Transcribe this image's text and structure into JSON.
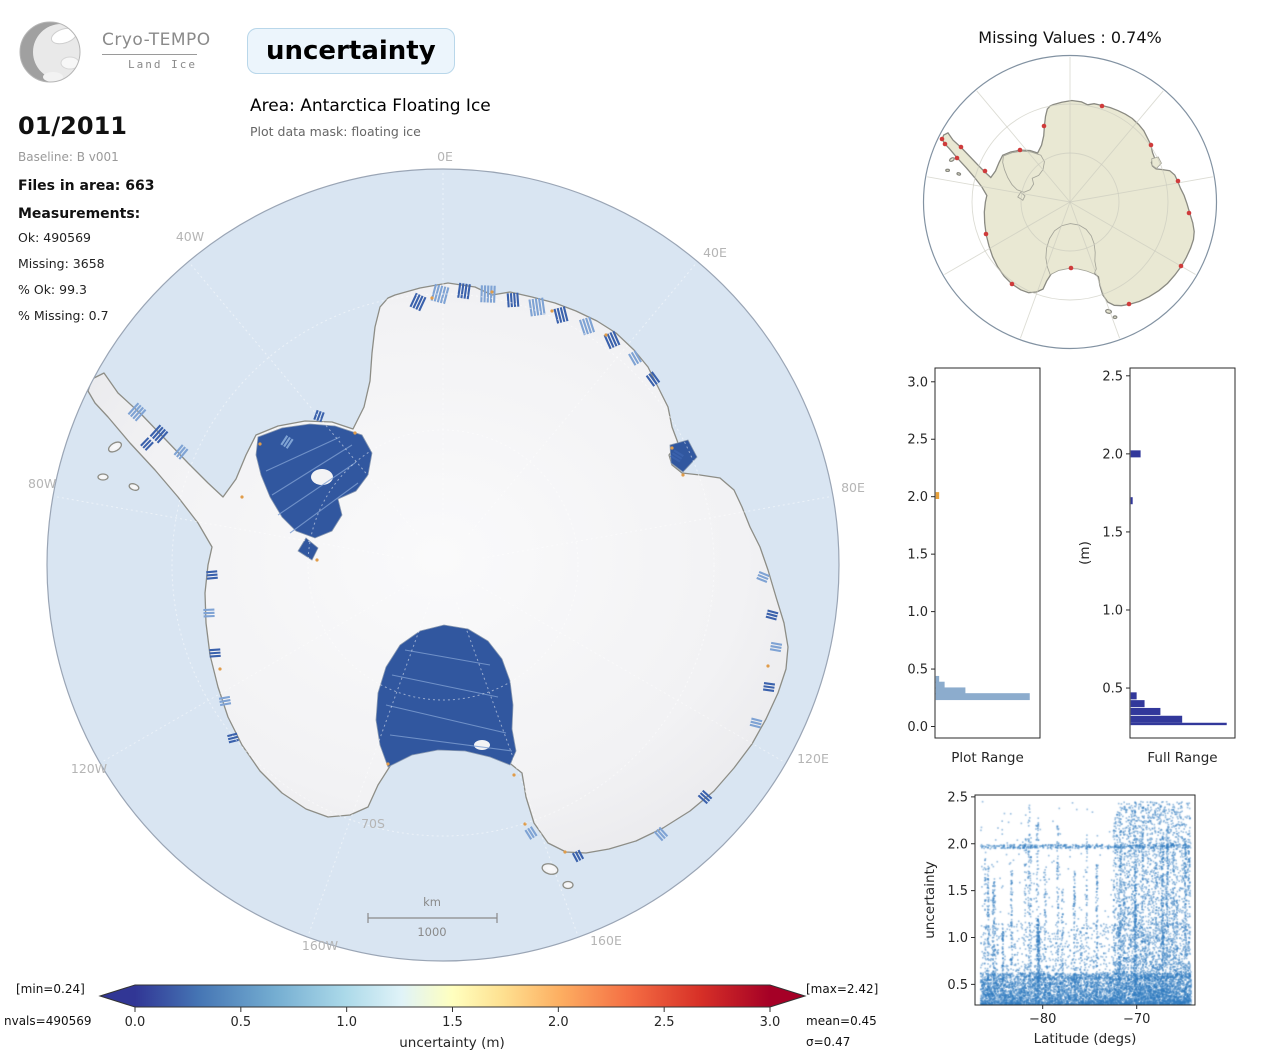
{
  "branding": {
    "name": "Cryo-TEMPO",
    "product": "Land Ice"
  },
  "header": {
    "plot_title": "uncertainty",
    "area": "Area: Antarctica Floating Ice",
    "mask": "Plot data mask: floating ice"
  },
  "info_panel": {
    "date": "01/2011",
    "baseline": "Baseline: B v001",
    "files": "Files in area: 663",
    "measurements_heading": "Measurements:",
    "stats": [
      "Ok: 490569",
      "Missing: 3658",
      "% Ok: 99.3",
      "% Missing: 0.7"
    ]
  },
  "main_map": {
    "meridian_labels": [
      "0E",
      "40E",
      "80E",
      "120E",
      "160E",
      "160W",
      "120W",
      "80W",
      "40W"
    ],
    "parallel_label": "70S",
    "scale_bar": {
      "unit": "km",
      "value": "1000"
    },
    "colors": {
      "ocean": "#d9e5f2",
      "land": "#f3f3f5",
      "coast": "#8d8d86",
      "shelf": "#31579f",
      "track": "#3a61ac",
      "track_light": "#7fa3d4",
      "warning": "#e09c4a"
    }
  },
  "colorbar": {
    "label": "uncertainty (m)",
    "vmin": 0,
    "vmax": 3,
    "tick_values": [
      0,
      0.5,
      1,
      1.5,
      2,
      2.5,
      3
    ],
    "ticks": [
      "0.0",
      "0.5",
      "1.0",
      "1.5",
      "2.0",
      "2.5",
      "3.0"
    ],
    "min_label": "[min=0.24]",
    "max_label": "[max=2.42]",
    "nvals_label": "nvals=490569",
    "mean_label": "mean=0.45",
    "sigma_label": "σ=0.47",
    "gradient": [
      [
        0,
        "#313695"
      ],
      [
        0.1,
        "#4575b4"
      ],
      [
        0.22,
        "#74add1"
      ],
      [
        0.33,
        "#abd9e9"
      ],
      [
        0.42,
        "#e0f3f8"
      ],
      [
        0.5,
        "#ffffbf"
      ],
      [
        0.58,
        "#fee090"
      ],
      [
        0.67,
        "#fdae61"
      ],
      [
        0.78,
        "#f46d43"
      ],
      [
        0.89,
        "#d73027"
      ],
      [
        1,
        "#a50026"
      ]
    ]
  },
  "missing_map": {
    "title": "Missing Values : 0.74%",
    "land_color": "#e9e8d3",
    "dot_color": "#cf3b3b",
    "dots": [
      [
        25,
        92
      ],
      [
        22,
        87
      ],
      [
        41,
        95
      ],
      [
        65,
        119
      ],
      [
        100,
        98
      ],
      [
        124,
        74
      ],
      [
        182,
        54
      ],
      [
        231,
        93
      ],
      [
        258,
        129
      ],
      [
        269,
        161
      ],
      [
        261,
        214
      ],
      [
        209,
        252
      ],
      [
        151,
        216
      ],
      [
        92,
        232
      ],
      [
        66,
        182
      ],
      [
        37,
        106
      ]
    ]
  },
  "chart_data": [
    {
      "id": "plot_range_histogram",
      "type": "bar",
      "orientation": "horizontal",
      "xlabel": "Plot Range",
      "ylabel": "",
      "ylim": [
        -0.1,
        3.12
      ],
      "yticks": [
        0,
        0.5,
        1,
        1.5,
        2,
        2.5,
        3
      ],
      "ytick_labels": [
        "0.0",
        "0.5",
        "1.0",
        "1.5",
        "2.0",
        "2.5",
        "3.0"
      ],
      "bin_height": 0.06,
      "bars": [
        {
          "value": 0.26,
          "frac": 0.95,
          "color": "#8caccd"
        },
        {
          "value": 0.31,
          "frac": 0.3,
          "color": "#8caccd"
        },
        {
          "value": 0.36,
          "frac": 0.09,
          "color": "#8caccd"
        },
        {
          "value": 0.41,
          "frac": 0.035,
          "color": "#8caccd"
        },
        {
          "value": 2.01,
          "frac": 0.035,
          "color": "#e8a23c"
        }
      ]
    },
    {
      "id": "full_range_histogram",
      "type": "bar",
      "orientation": "horizontal",
      "xlabel": "Full Range",
      "ylabel": "(m)",
      "ylim": [
        0.18,
        2.55
      ],
      "yticks": [
        0.5,
        1,
        1.5,
        2,
        2.5
      ],
      "ytick_labels": [
        "0.5",
        "1.0",
        "1.5",
        "2.0",
        "2.5"
      ],
      "bin_height": 0.045,
      "bars": [
        {
          "value": 0.27,
          "frac": 0.97,
          "color": "#32389b",
          "thin": true
        },
        {
          "value": 0.3,
          "frac": 0.52,
          "color": "#32389b"
        },
        {
          "value": 0.35,
          "frac": 0.3,
          "color": "#32389b"
        },
        {
          "value": 0.4,
          "frac": 0.14,
          "color": "#32389b"
        },
        {
          "value": 0.45,
          "frac": 0.06,
          "color": "#32389b"
        },
        {
          "value": 1.7,
          "frac": 0.02,
          "color": "#32389b"
        },
        {
          "value": 2,
          "frac": 0.1,
          "color": "#32389b"
        }
      ]
    },
    {
      "id": "latitude_scatter",
      "type": "scatter",
      "xlabel": "Latitude (degs)",
      "ylabel": "uncertainty",
      "xlim": [
        -87.2,
        -63.8
      ],
      "ylim": [
        0.28,
        2.52
      ],
      "xticks": [
        -80,
        -70
      ],
      "xtick_labels": [
        "−80",
        "−70"
      ],
      "yticks": [
        0.5,
        1,
        1.5,
        2,
        2.5
      ],
      "ytick_labels": [
        "0.5",
        "1.0",
        "1.5",
        "2.0",
        "2.5"
      ],
      "point_color": "#2e7bbf",
      "seed": 20110101,
      "x_range": [
        -86.6,
        -64.2
      ],
      "bands": [
        {
          "desc": "dense low uncertainty band",
          "y": [
            0.28,
            0.62
          ],
          "pow": 1.6,
          "n": 5200
        },
        {
          "desc": "mid haze",
          "y": [
            0.55,
            1.15
          ],
          "pow": 1.3,
          "n": 900
        },
        {
          "desc": "horizontal artifact line",
          "y": [
            1.95,
            1.99
          ],
          "pow": 1,
          "n": 420
        },
        {
          "desc": "sparse high scatter",
          "y": [
            0.3,
            2.45
          ],
          "pow": 2.2,
          "n": 500
        }
      ],
      "streaks": {
        "n": 40,
        "ymax_range": [
          1.05,
          2.45
        ],
        "points_each": [
          25,
          95
        ]
      },
      "right_block": {
        "x": [
          -72.5,
          -64.3
        ],
        "y": [
          0.3,
          2.45
        ],
        "n": 2600
      }
    }
  ]
}
